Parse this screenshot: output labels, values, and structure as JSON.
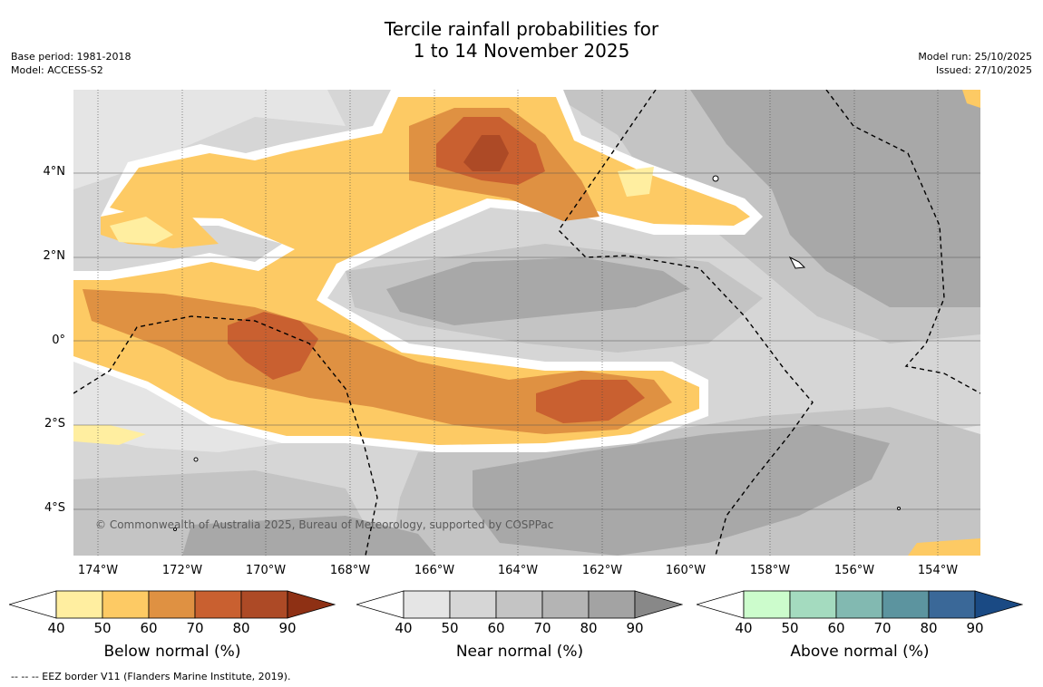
{
  "title_line1": "Tercile rainfall probabilities for",
  "title_line2": "1 to 14 November 2025",
  "base_period": "Base period: 1981-2018",
  "model": "Model: ACCESS-S2",
  "model_run": "Model run: 25/10/2025",
  "issued": "Issued: 27/10/2025",
  "copyright": "© Commonwealth of Australia 2025, Bureau of Meteorology, supported by COSPPac",
  "footnote": "--  --  -- EEZ border V11 (Flanders Marine Institute, 2019).",
  "lat_labels": [
    "4°N",
    "2°N",
    "0°",
    "2°S",
    "4°S"
  ],
  "lon_labels": [
    "174°W",
    "172°W",
    "170°W",
    "168°W",
    "166°W",
    "164°W",
    "162°W",
    "160°W",
    "158°W",
    "156°W",
    "154°W"
  ],
  "colorbars": [
    {
      "label": "Below normal (%)",
      "ticks": [
        "40",
        "50",
        "60",
        "70",
        "80",
        "90"
      ],
      "colors": [
        "#ffeea0",
        "#fdca64",
        "#df9142",
        "#c96030",
        "#ad4a26",
        "#8e3014"
      ]
    },
    {
      "label": "Near normal (%)",
      "ticks": [
        "40",
        "50",
        "60",
        "70",
        "80",
        "90"
      ],
      "colors": [
        "#e5e5e5",
        "#d6d6d6",
        "#c4c4c4",
        "#b4b4b4",
        "#a3a3a3",
        "#888888"
      ]
    },
    {
      "label": "Above normal (%)",
      "ticks": [
        "40",
        "50",
        "60",
        "70",
        "80",
        "90"
      ],
      "colors": [
        "#ccfccc",
        "#a4dbbf",
        "#82b9b1",
        "#5c949f",
        "#3a6898",
        "#1a4a84"
      ]
    }
  ]
}
